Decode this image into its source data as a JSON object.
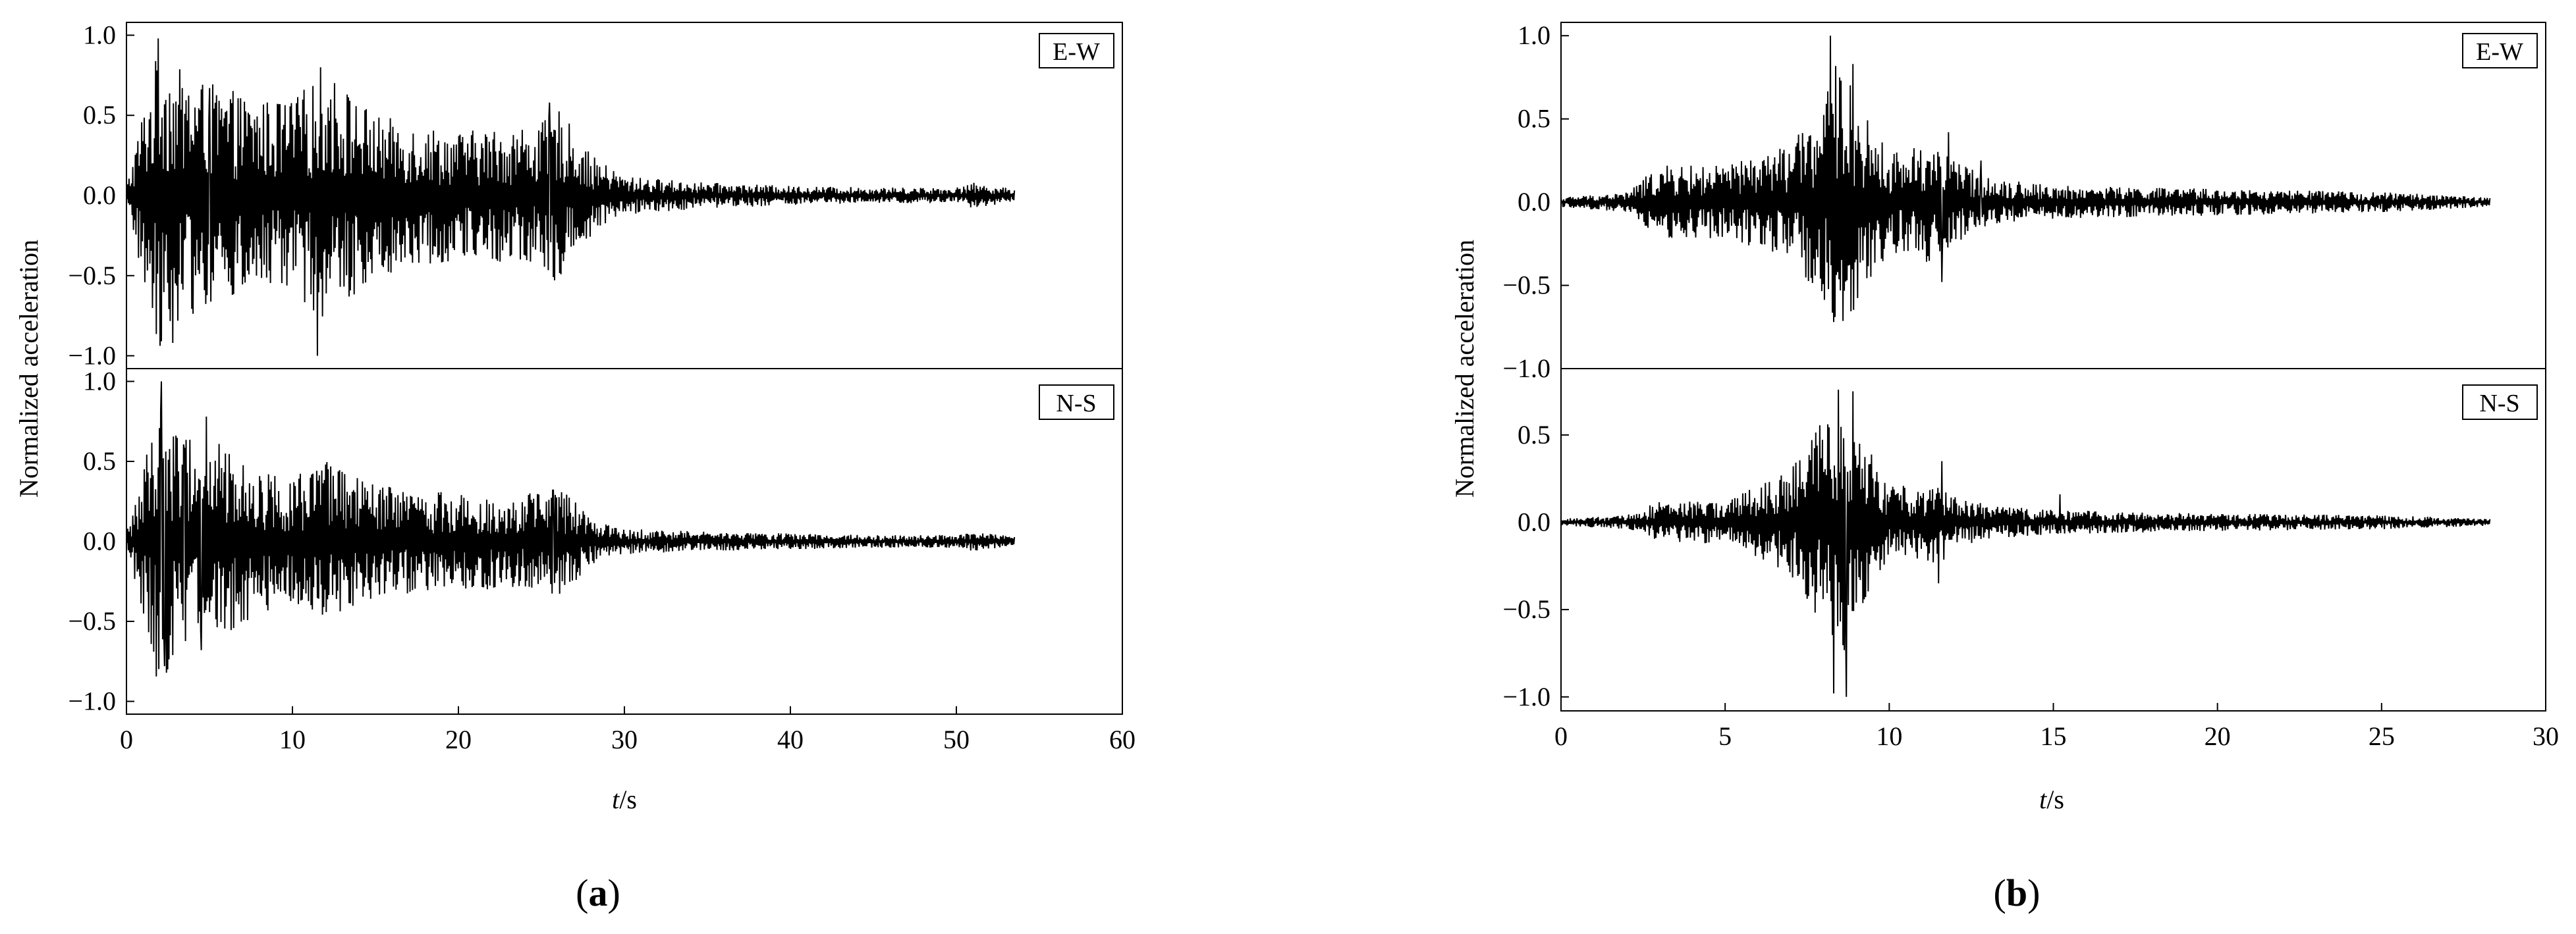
{
  "chart_data": [
    {
      "id": "a",
      "type": "line",
      "panel_label": "a",
      "ylabel": "Normalized  acceleration",
      "xlabel_italic": "t",
      "xlabel_unit": "/s",
      "xlim": [
        0,
        60
      ],
      "x_ticks": [
        0,
        10,
        20,
        30,
        40,
        50,
        60
      ],
      "x_tick_labels": [
        "0",
        "10",
        "20",
        "30",
        "40",
        "50",
        "60"
      ],
      "duration": 53.5,
      "subplots": [
        {
          "name": "E-W",
          "ylim": [
            -1.0,
            1.0
          ],
          "y_ticks": [
            1.0,
            0.5,
            0.0,
            -0.5,
            -1.0
          ],
          "y_tick_labels": [
            "1.0",
            "0.5",
            "0.0",
            "−0.5",
            "−1.0"
          ],
          "envelope": {
            "t": [
              0,
              1,
              2,
              3,
              5,
              8,
              10,
              12,
              15,
              20,
              25,
              26,
              28,
              30,
              35,
              40,
              45,
              50,
              51,
              53.5
            ],
            "a": [
              0.05,
              0.55,
              0.95,
              0.8,
              0.7,
              0.6,
              0.6,
              0.8,
              0.5,
              0.4,
              0.45,
              0.55,
              0.25,
              0.12,
              0.08,
              0.06,
              0.05,
              0.05,
              0.08,
              0.04
            ]
          },
          "peaks": [
            [
              1.9,
              0.98
            ],
            [
              11.5,
              -1.0
            ],
            [
              11.7,
              0.8
            ],
            [
              5.0,
              0.67
            ],
            [
              25.5,
              0.58
            ],
            [
              2.8,
              -0.92
            ]
          ]
        },
        {
          "name": "N-S",
          "ylim": [
            -1.0,
            1.0
          ],
          "y_ticks": [
            1.0,
            0.5,
            0.0,
            -0.5,
            -1.0
          ],
          "y_tick_labels": [
            "1.0",
            "0.5",
            "0.0",
            "−0.5",
            "−1.0"
          ],
          "envelope": {
            "t": [
              0,
              1,
              2,
              3,
              5,
              8,
              10,
              12,
              15,
              20,
              25,
              26,
              28,
              30,
              35,
              40,
              45,
              50,
              51,
              53.5
            ],
            "a": [
              0.05,
              0.45,
              0.95,
              0.7,
              0.65,
              0.45,
              0.4,
              0.5,
              0.35,
              0.3,
              0.3,
              0.35,
              0.15,
              0.08,
              0.06,
              0.05,
              0.04,
              0.04,
              0.06,
              0.03
            ]
          },
          "peaks": [
            [
              2.1,
              1.0
            ],
            [
              2.3,
              -0.78
            ],
            [
              4.8,
              0.78
            ],
            [
              3.5,
              0.58
            ],
            [
              4.5,
              -0.68
            ],
            [
              25.7,
              0.32
            ]
          ]
        }
      ]
    },
    {
      "id": "b",
      "type": "line",
      "panel_label": "b",
      "ylabel": "Normalized  acceleration",
      "xlabel_italic": "t",
      "xlabel_unit": "/s",
      "xlim": [
        0,
        30
      ],
      "x_ticks": [
        0,
        5,
        10,
        15,
        20,
        25,
        30
      ],
      "x_tick_labels": [
        "0",
        "5",
        "10",
        "15",
        "20",
        "25",
        "30"
      ],
      "duration": 28.3,
      "subplots": [
        {
          "name": "E-W",
          "ylim": [
            -1.0,
            1.0
          ],
          "y_ticks": [
            1.0,
            0.5,
            0.0,
            -0.5,
            -1.0
          ],
          "y_tick_labels": [
            "1.0",
            "0.5",
            "0.0",
            "−0.5",
            "−1.0"
          ],
          "envelope": {
            "t": [
              0,
              2,
              3,
              5,
              7,
              8,
              8.5,
              9,
              10,
              11.5,
              12,
              13,
              15,
              20,
              25,
              28.3
            ],
            "a": [
              0.03,
              0.06,
              0.22,
              0.22,
              0.35,
              0.6,
              0.9,
              0.6,
              0.3,
              0.38,
              0.25,
              0.15,
              0.1,
              0.08,
              0.06,
              0.03
            ]
          },
          "peaks": [
            [
              8.2,
              1.0
            ],
            [
              8.3,
              -0.72
            ],
            [
              8.9,
              0.83
            ],
            [
              11.6,
              -0.48
            ],
            [
              11.8,
              0.42
            ],
            [
              12.8,
              0.25
            ]
          ]
        },
        {
          "name": "N-S",
          "ylim": [
            -1.0,
            0.8
          ],
          "y_ticks": [
            0.5,
            0.0,
            -0.5,
            -1.0
          ],
          "y_tick_labels": [
            "0.5",
            "0.0",
            "−0.5",
            "−1.0"
          ],
          "envelope": {
            "t": [
              0,
              2,
              3,
              5,
              7,
              8,
              8.5,
              9,
              10,
              11.5,
              12,
              13,
              15,
              20,
              25,
              28.3
            ],
            "a": [
              0.02,
              0.04,
              0.12,
              0.12,
              0.3,
              0.6,
              0.85,
              0.55,
              0.2,
              0.25,
              0.15,
              0.1,
              0.07,
              0.05,
              0.04,
              0.02
            ]
          },
          "peaks": [
            [
              8.3,
              0.8
            ],
            [
              8.3,
              -0.98
            ],
            [
              8.7,
              -1.0
            ],
            [
              8.9,
              0.75
            ],
            [
              11.6,
              0.35
            ],
            [
              11.5,
              -0.35
            ],
            [
              15.2,
              0.16
            ]
          ]
        }
      ]
    }
  ]
}
